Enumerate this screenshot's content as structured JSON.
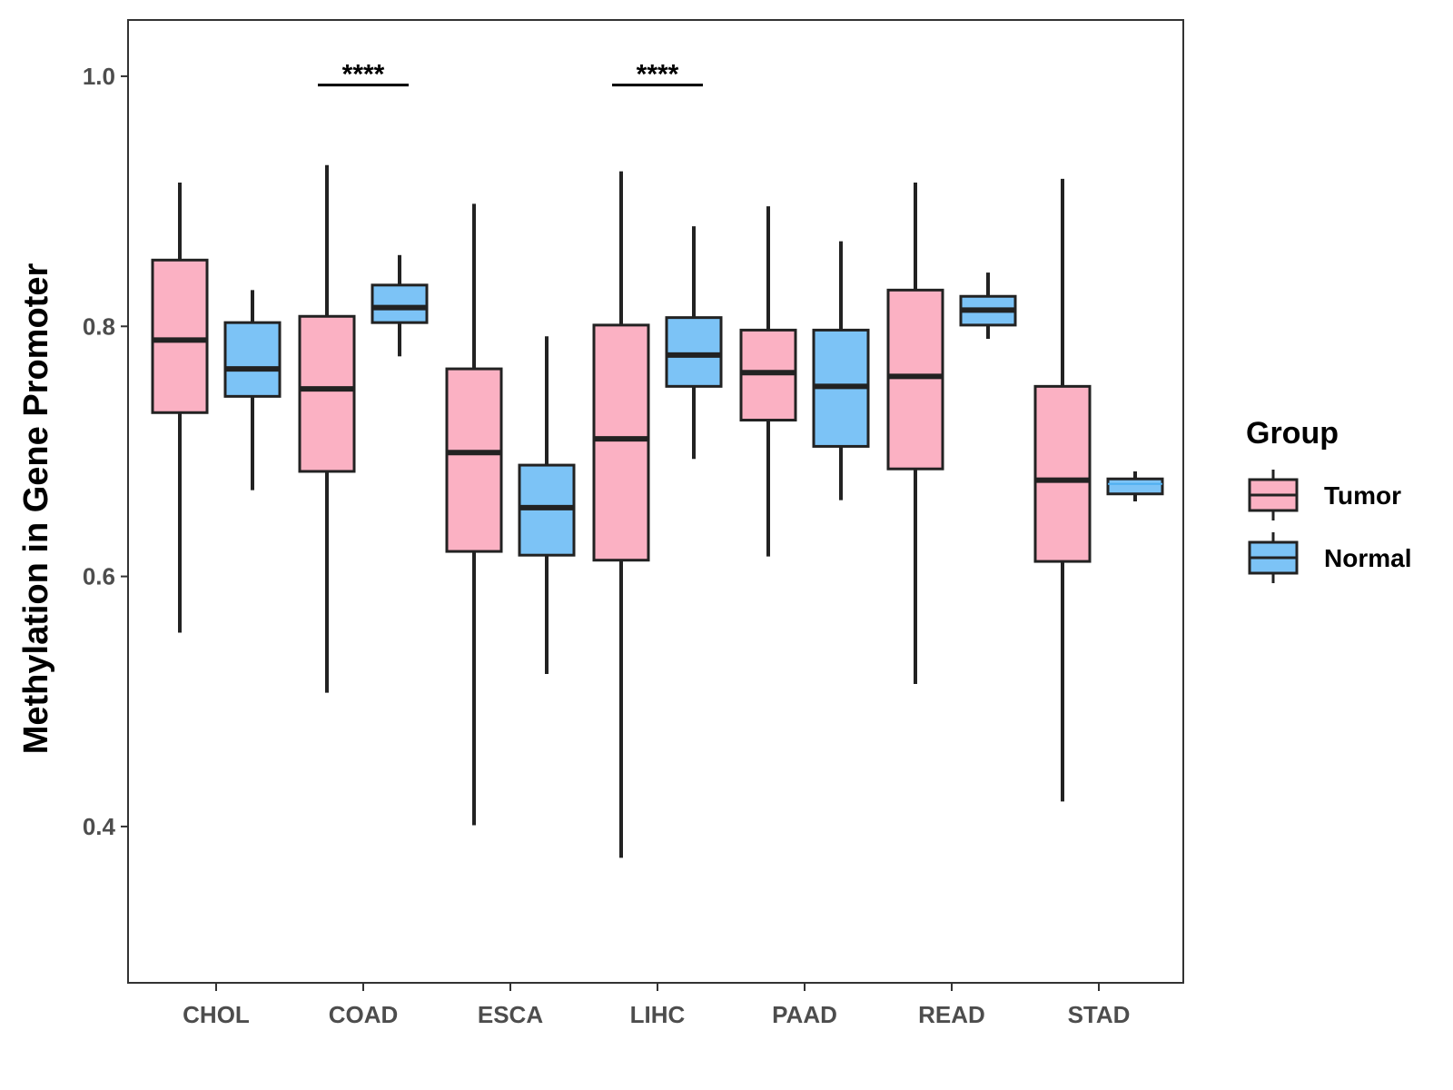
{
  "chart_data": {
    "type": "boxplot",
    "ylabel": "Methylation in Gene Promoter",
    "xlabel": "",
    "ylim": [
      0.275,
      1.045
    ],
    "yticks": [
      0.4,
      0.6,
      0.8,
      1.0
    ],
    "ytick_labels": [
      "0.4",
      "0.6",
      "0.8",
      "1.0"
    ],
    "categories": [
      "CHOL",
      "COAD",
      "ESCA",
      "LIHC",
      "PAAD",
      "READ",
      "STAD"
    ],
    "legend": {
      "title": "Group",
      "position": "right",
      "entries": [
        {
          "label": "Tumor",
          "color": "#FBB1C3"
        },
        {
          "label": "Normal",
          "color": "#7CC3F6"
        }
      ]
    },
    "series": [
      {
        "name": "Tumor",
        "color": "#FBB1C3",
        "boxes": [
          {
            "min": 0.555,
            "q1": 0.731,
            "median": 0.789,
            "q3": 0.853,
            "max": 0.915
          },
          {
            "min": 0.507,
            "q1": 0.684,
            "median": 0.75,
            "q3": 0.808,
            "max": 0.929
          },
          {
            "min": 0.401,
            "q1": 0.62,
            "median": 0.699,
            "q3": 0.766,
            "max": 0.898
          },
          {
            "min": 0.375,
            "q1": 0.613,
            "median": 0.71,
            "q3": 0.801,
            "max": 0.924
          },
          {
            "min": 0.616,
            "q1": 0.725,
            "median": 0.763,
            "q3": 0.797,
            "max": 0.896
          },
          {
            "min": 0.514,
            "q1": 0.686,
            "median": 0.76,
            "q3": 0.829,
            "max": 0.915
          },
          {
            "min": 0.42,
            "q1": 0.612,
            "median": 0.677,
            "q3": 0.752,
            "max": 0.918
          }
        ]
      },
      {
        "name": "Normal",
        "color": "#7CC3F6",
        "boxes": [
          {
            "min": 0.669,
            "q1": 0.744,
            "median": 0.766,
            "q3": 0.803,
            "max": 0.829
          },
          {
            "min": 0.776,
            "q1": 0.803,
            "median": 0.815,
            "q3": 0.833,
            "max": 0.857
          },
          {
            "min": 0.522,
            "q1": 0.617,
            "median": 0.655,
            "q3": 0.689,
            "max": 0.792
          },
          {
            "min": 0.694,
            "q1": 0.752,
            "median": 0.777,
            "q3": 0.807,
            "max": 0.88
          },
          {
            "min": 0.661,
            "q1": 0.704,
            "median": 0.752,
            "q3": 0.797,
            "max": 0.868
          },
          {
            "min": 0.79,
            "q1": 0.801,
            "median": 0.813,
            "q3": 0.824,
            "max": 0.843
          },
          {
            "min": 0.66,
            "q1": 0.666,
            "median": 0.674,
            "q3": 0.678,
            "max": 0.684
          }
        ]
      }
    ],
    "significance": [
      {
        "category": "COAD",
        "label": "****",
        "y": 0.993
      },
      {
        "category": "LIHC",
        "label": "****",
        "y": 0.993
      }
    ]
  }
}
